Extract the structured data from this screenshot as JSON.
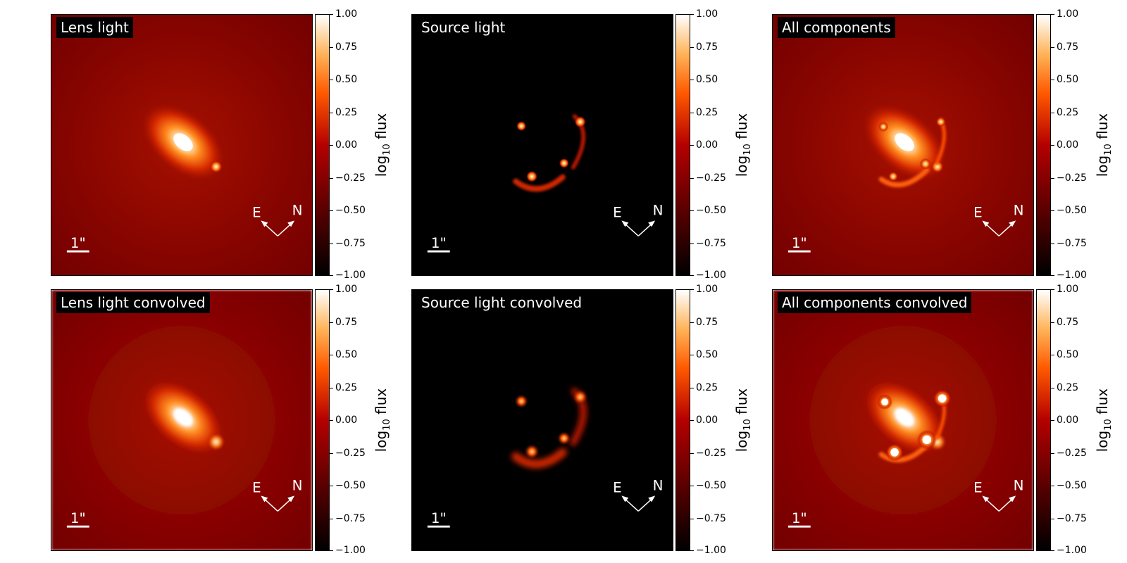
{
  "chart_data": {
    "type": "heatmap",
    "colormap": "gist_heat",
    "colorbar": {
      "label_text": "log",
      "label_sub": "10",
      "label_suffix": " flux",
      "range": [
        -1.0,
        1.0
      ],
      "ticks": [
        "1.00",
        "0.75",
        "0.50",
        "0.25",
        "0.00",
        "−0.25",
        "−0.50",
        "−0.75",
        "−1.00"
      ]
    },
    "scale_bar_label": "1\"",
    "compass": {
      "east": "E",
      "north": "N"
    },
    "panels": [
      {
        "title": "Lens light",
        "kind": "lens",
        "convolved": false
      },
      {
        "title": "Source light",
        "kind": "source",
        "convolved": false
      },
      {
        "title": "All components",
        "kind": "all",
        "convolved": false
      },
      {
        "title": "Lens light convolved",
        "kind": "lens",
        "convolved": true
      },
      {
        "title": "Source light convolved",
        "kind": "source",
        "convolved": true
      },
      {
        "title": "All components convolved",
        "kind": "all",
        "convolved": true
      }
    ]
  },
  "colors": {
    "background_dark": "#000000",
    "label_bg": "#000000",
    "label_text": "#ffffff"
  }
}
